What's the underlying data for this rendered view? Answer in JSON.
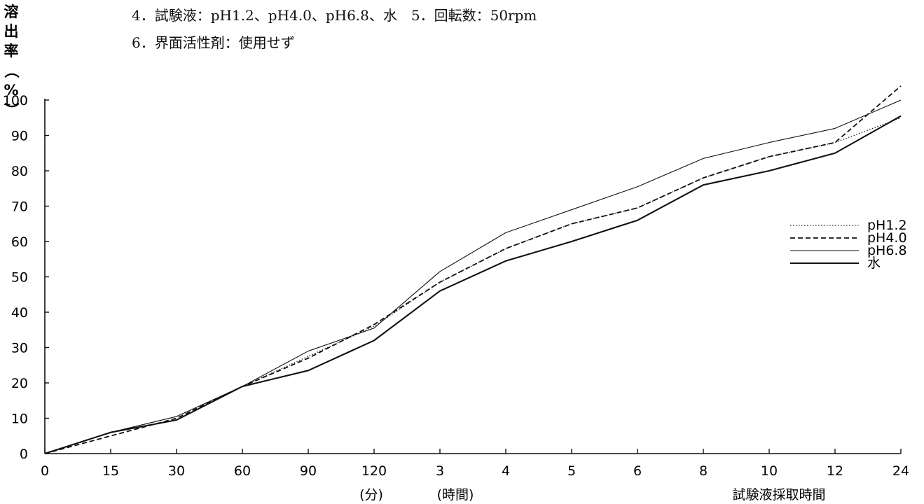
{
  "conditions": {
    "line1": "4．試験液：pH1.2、pH4.0、pH6.8、水　5．回転数：50rpm",
    "line2": "6．界面活性剤：使用せず"
  },
  "chart_data": {
    "type": "line",
    "ylabel": "溶出率（%）",
    "xlabel": "試験液採取時間",
    "x_unit_labels": [
      "(分)",
      "(時間)"
    ],
    "categories": [
      "0",
      "15",
      "30",
      "60",
      "90",
      "120",
      "3",
      "4",
      "5",
      "6",
      "8",
      "10",
      "12",
      "24"
    ],
    "ylim": [
      0,
      100
    ],
    "yticks": [
      0,
      10,
      20,
      30,
      40,
      50,
      60,
      70,
      80,
      90,
      100
    ],
    "legend_position": "right",
    "grid": false,
    "series": [
      {
        "name": "pH1.2",
        "style": "dotted",
        "values": [
          0,
          6,
          10.5,
          19,
          27.5,
          36,
          48.5,
          58,
          65,
          69.5,
          78,
          84,
          88,
          95
        ]
      },
      {
        "name": "pH4.0",
        "style": "dashed",
        "values": [
          0,
          5,
          10,
          19,
          27,
          36.5,
          48.5,
          58,
          65,
          69.5,
          78,
          84,
          88,
          104
        ]
      },
      {
        "name": "pH6.8",
        "style": "thin",
        "values": [
          0,
          6,
          10.5,
          19,
          29,
          35.5,
          51.5,
          62.5,
          69,
          75.5,
          83.5,
          88,
          92,
          100
        ]
      },
      {
        "name": "水",
        "style": "thick",
        "values": [
          0,
          6,
          9.5,
          19,
          23.5,
          32,
          46,
          54.5,
          60,
          66,
          76,
          80,
          85,
          95.5
        ]
      }
    ]
  }
}
